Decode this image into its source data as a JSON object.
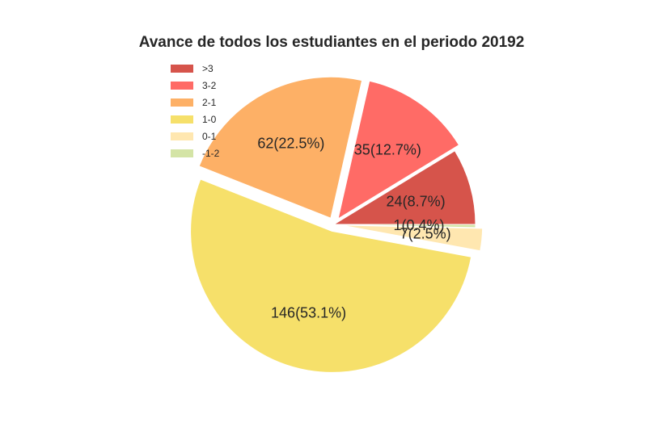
{
  "chart_data": {
    "type": "pie",
    "title": "Avance de todos los estudiantes en el periodo 20192",
    "slices": [
      {
        "name": ">3",
        "value": 24,
        "label": "24(8.7%)",
        "color": "#d6544b",
        "explode": false
      },
      {
        "name": "3-2",
        "value": 35,
        "label": "35(12.7%)",
        "color": "#ff6b66",
        "explode": true
      },
      {
        "name": "2-1",
        "value": 62,
        "label": "62(22.5%)",
        "color": "#fdb066",
        "explode": true
      },
      {
        "name": "1-0",
        "value": 146,
        "label": "146(53.1%)",
        "color": "#f6e06a",
        "explode": true
      },
      {
        "name": "0-1",
        "value": 7,
        "label": "7(2.5%)",
        "color": "#ffe7b0",
        "explode": true
      },
      {
        "name": "-1-2",
        "value": 1,
        "label": "1(0.4%)",
        "color": "#d4e4a6",
        "explode": false
      }
    ],
    "start_angle_deg": 0,
    "direction": "counterclockwise",
    "legend_position": "top-left"
  }
}
